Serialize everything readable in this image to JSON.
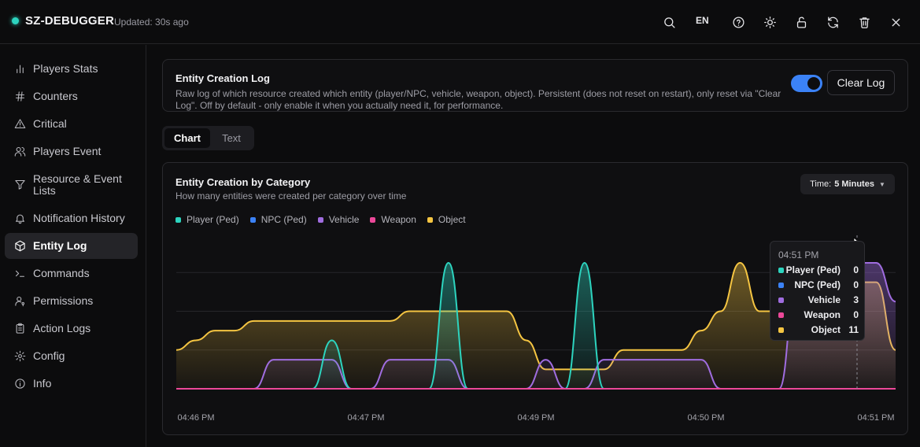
{
  "header": {
    "brand": "SZ-DEBUGGER",
    "updated": "Updated: 30s ago",
    "lang": "EN",
    "accent": "#2dd4bf"
  },
  "sidebar": {
    "items": [
      {
        "label": "Players Stats",
        "icon": "bar-chart-icon"
      },
      {
        "label": "Counters",
        "icon": "hash-icon"
      },
      {
        "label": "Critical",
        "icon": "warning-triangle-icon"
      },
      {
        "label": "Players Event",
        "icon": "users-icon"
      },
      {
        "label": "Resource & Event Lists",
        "icon": "filter-icon"
      },
      {
        "label": "Notification History",
        "icon": "bell-icon"
      },
      {
        "label": "Entity Log",
        "icon": "cube-icon",
        "active": true
      },
      {
        "label": "Commands",
        "icon": "terminal-icon"
      },
      {
        "label": "Permissions",
        "icon": "user-key-icon"
      },
      {
        "label": "Action Logs",
        "icon": "clipboard-icon"
      },
      {
        "label": "Config",
        "icon": "gear-icon"
      },
      {
        "label": "Info",
        "icon": "info-icon"
      }
    ]
  },
  "log_card": {
    "title": "Entity Creation Log",
    "description": "Raw log of which resource created which entity (player/NPC, vehicle, weapon, object). Persistent (does not reset on restart), only reset via \"Clear Log\". Off by default - only enable it when you actually need it, for performance.",
    "toggle_on": true,
    "clear_label": "Clear Log"
  },
  "tabs": [
    {
      "label": "Chart",
      "active": true
    },
    {
      "label": "Text",
      "active": false
    }
  ],
  "chart_card": {
    "title": "Entity Creation by Category",
    "subtitle": "How many entities were created per category over time",
    "time_label": "Time:",
    "time_value": "5 Minutes"
  },
  "chart_data": {
    "type": "area",
    "x_ticks": [
      "04:46 PM",
      "04:47 PM",
      "04:49 PM",
      "04:50 PM",
      "04:51 PM"
    ],
    "ylim": [
      0,
      16
    ],
    "grid": true,
    "series": [
      {
        "name": "Player (Ped)",
        "color": "#2dd4bf",
        "values": [
          0,
          0,
          0,
          0,
          0,
          0,
          0,
          0,
          5,
          0,
          0,
          0,
          0,
          0,
          13,
          0,
          0,
          0,
          0,
          0,
          0,
          13,
          0,
          0,
          0,
          0,
          0,
          0,
          0,
          0,
          0,
          0,
          0,
          0,
          0,
          0,
          0,
          0
        ]
      },
      {
        "name": "NPC (Ped)",
        "color": "#3b82f6",
        "values": [
          0,
          0,
          0,
          0,
          0,
          0,
          0,
          0,
          0,
          0,
          0,
          0,
          0,
          0,
          0,
          0,
          0,
          0,
          0,
          0,
          0,
          0,
          0,
          0,
          0,
          0,
          0,
          0,
          0,
          0,
          0,
          0,
          0,
          0,
          0,
          0,
          0,
          0
        ]
      },
      {
        "name": "Vehicle",
        "color": "#a06de0",
        "values": [
          0,
          0,
          0,
          0,
          0,
          3,
          3,
          3,
          3,
          0,
          0,
          3,
          3,
          3,
          3,
          0,
          0,
          0,
          0,
          3,
          0,
          0,
          3,
          3,
          3,
          3,
          3,
          3,
          0,
          0,
          0,
          0,
          13,
          13,
          13,
          13,
          13,
          9
        ]
      },
      {
        "name": "Weapon",
        "color": "#ec4899",
        "values": [
          0,
          0,
          0,
          0,
          0,
          0,
          0,
          0,
          0,
          0,
          0,
          0,
          0,
          0,
          0,
          0,
          0,
          0,
          0,
          0,
          0,
          0,
          0,
          0,
          0,
          0,
          0,
          0,
          0,
          0,
          0,
          0,
          0,
          0,
          0,
          0,
          0,
          0
        ]
      },
      {
        "name": "Object",
        "color": "#f5c542",
        "values": [
          4,
          5,
          6,
          6,
          7,
          7,
          7,
          7,
          7,
          7,
          7,
          7,
          8,
          8,
          8,
          8,
          8,
          8,
          5,
          2,
          2,
          2,
          2,
          4,
          4,
          4,
          4,
          6,
          8,
          13,
          8,
          8,
          8,
          11,
          11,
          11,
          11,
          4
        ]
      }
    ],
    "tooltip": {
      "time": "04:51 PM",
      "rows": [
        {
          "name": "Player (Ped)",
          "value": "0",
          "color": "#2dd4bf"
        },
        {
          "name": "NPC (Ped)",
          "value": "0",
          "color": "#3b82f6"
        },
        {
          "name": "Vehicle",
          "value": "3",
          "color": "#a06de0"
        },
        {
          "name": "Weapon",
          "value": "0",
          "color": "#ec4899"
        },
        {
          "name": "Object",
          "value": "11",
          "color": "#f5c542"
        }
      ]
    }
  }
}
